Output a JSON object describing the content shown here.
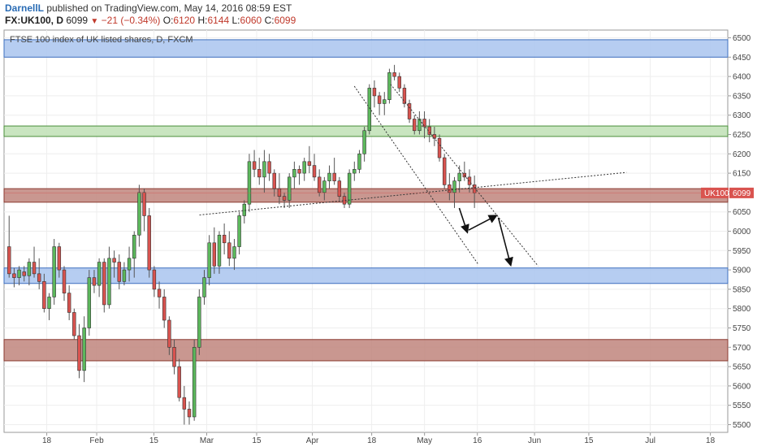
{
  "header": {
    "author": "DarnellL",
    "published": "published on TradingView.com, May 14, 2016 08:59 EST",
    "symbol": "FX:UK100, D",
    "price": "6099",
    "change_arrow": "▼",
    "change": "−21 (−0.34%)",
    "o_label": "O:",
    "o_value": "6120",
    "h_label": "H:",
    "h_value": "6144",
    "l_label": "L:",
    "l_value": "6060",
    "c_label": "C:",
    "c_value": "6099"
  },
  "chart_data": {
    "type": "candlestick",
    "title": "FTSE 100 index of UK listed shares, D, FXCM",
    "ylim": [
      5480,
      6520
    ],
    "y_ticks": [
      5500,
      5550,
      5600,
      5650,
      5700,
      5750,
      5800,
      5850,
      5900,
      5950,
      6000,
      6050,
      6100,
      6150,
      6200,
      6250,
      6300,
      6350,
      6400,
      6450,
      6500
    ],
    "x_ticks": [
      "18",
      "Feb",
      "15",
      "Mar",
      "15",
      "Apr",
      "18",
      "May",
      "16",
      "Jun",
      "15",
      "Jul",
      "18"
    ],
    "symbol_tag": "UK100",
    "last_price": 6099,
    "colors": {
      "up": "#5cb85c",
      "down": "#d9534f",
      "wick": "#555555",
      "blue_zone": "#a9c4ee",
      "green_zone": "#bfe0b5",
      "red_zone": "#c0857c"
    },
    "zones": [
      {
        "kind": "blue",
        "from": 6450,
        "to": 6495
      },
      {
        "kind": "green",
        "from": 6245,
        "to": 6272
      },
      {
        "kind": "red",
        "from": 6075,
        "to": 6110
      },
      {
        "kind": "blue",
        "from": 5865,
        "to": 5905
      },
      {
        "kind": "red",
        "from": 5665,
        "to": 5720
      }
    ],
    "candles": [
      [
        5960,
        6040,
        5880,
        5890
      ],
      [
        5890,
        5905,
        5855,
        5880
      ],
      [
        5880,
        5910,
        5860,
        5900
      ],
      [
        5895,
        5910,
        5870,
        5885
      ],
      [
        5885,
        5930,
        5860,
        5920
      ],
      [
        5920,
        5960,
        5880,
        5890
      ],
      [
        5890,
        5930,
        5850,
        5870
      ],
      [
        5870,
        5890,
        5790,
        5800
      ],
      [
        5800,
        5840,
        5770,
        5830
      ],
      [
        5830,
        5980,
        5810,
        5960
      ],
      [
        5960,
        5970,
        5880,
        5900
      ],
      [
        5900,
        5910,
        5820,
        5840
      ],
      [
        5840,
        5860,
        5770,
        5790
      ],
      [
        5790,
        5800,
        5720,
        5730
      ],
      [
        5730,
        5760,
        5620,
        5640
      ],
      [
        5640,
        5780,
        5610,
        5750
      ],
      [
        5750,
        5900,
        5730,
        5880
      ],
      [
        5880,
        5900,
        5840,
        5860
      ],
      [
        5860,
        5930,
        5830,
        5920
      ],
      [
        5920,
        5930,
        5790,
        5810
      ],
      [
        5810,
        5960,
        5800,
        5930
      ],
      [
        5930,
        5950,
        5880,
        5920
      ],
      [
        5920,
        5940,
        5850,
        5870
      ],
      [
        5870,
        5920,
        5860,
        5900
      ],
      [
        5900,
        5960,
        5870,
        5930
      ],
      [
        5930,
        6000,
        5880,
        5990
      ],
      [
        5990,
        6120,
        5960,
        6100
      ],
      [
        6100,
        6110,
        6000,
        6040
      ],
      [
        6040,
        6060,
        5880,
        5900
      ],
      [
        5900,
        5910,
        5830,
        5850
      ],
      [
        5850,
        5870,
        5800,
        5830
      ],
      [
        5830,
        5850,
        5750,
        5770
      ],
      [
        5770,
        5780,
        5680,
        5700
      ],
      [
        5700,
        5720,
        5630,
        5650
      ],
      [
        5650,
        5670,
        5560,
        5570
      ],
      [
        5570,
        5600,
        5500,
        5540
      ],
      [
        5540,
        5560,
        5500,
        5520
      ],
      [
        5520,
        5720,
        5510,
        5700
      ],
      [
        5700,
        5850,
        5680,
        5830
      ],
      [
        5830,
        5900,
        5810,
        5880
      ],
      [
        5880,
        5990,
        5860,
        5970
      ],
      [
        5970,
        6010,
        5890,
        5910
      ],
      [
        5910,
        6000,
        5890,
        5990
      ],
      [
        5990,
        6020,
        5940,
        5970
      ],
      [
        5970,
        6000,
        5910,
        5930
      ],
      [
        5930,
        5980,
        5900,
        5960
      ],
      [
        5960,
        6050,
        5940,
        6040
      ],
      [
        6040,
        6080,
        6020,
        6070
      ],
      [
        6070,
        6200,
        6050,
        6180
      ],
      [
        6180,
        6210,
        6140,
        6160
      ],
      [
        6160,
        6190,
        6120,
        6140
      ],
      [
        6140,
        6210,
        6100,
        6180
      ],
      [
        6180,
        6200,
        6130,
        6150
      ],
      [
        6150,
        6160,
        6090,
        6110
      ],
      [
        6110,
        6150,
        6070,
        6090
      ],
      [
        6090,
        6100,
        6060,
        6080
      ],
      [
        6080,
        6150,
        6060,
        6140
      ],
      [
        6140,
        6180,
        6110,
        6160
      ],
      [
        6160,
        6170,
        6120,
        6150
      ],
      [
        6150,
        6190,
        6130,
        6180
      ],
      [
        6180,
        6220,
        6150,
        6170
      ],
      [
        6170,
        6200,
        6130,
        6140
      ],
      [
        6140,
        6160,
        6090,
        6100
      ],
      [
        6100,
        6140,
        6080,
        6130
      ],
      [
        6130,
        6170,
        6110,
        6150
      ],
      [
        6150,
        6190,
        6120,
        6130
      ],
      [
        6130,
        6140,
        6080,
        6090
      ],
      [
        6090,
        6100,
        6060,
        6070
      ],
      [
        6070,
        6160,
        6060,
        6150
      ],
      [
        6150,
        6180,
        6130,
        6160
      ],
      [
        6160,
        6210,
        6150,
        6200
      ],
      [
        6200,
        6270,
        6180,
        6260
      ],
      [
        6260,
        6380,
        6250,
        6370
      ],
      [
        6370,
        6390,
        6320,
        6350
      ],
      [
        6350,
        6360,
        6300,
        6330
      ],
      [
        6330,
        6360,
        6300,
        6340
      ],
      [
        6340,
        6420,
        6330,
        6410
      ],
      [
        6410,
        6430,
        6390,
        6400
      ],
      [
        6400,
        6410,
        6360,
        6370
      ],
      [
        6370,
        6380,
        6320,
        6330
      ],
      [
        6330,
        6340,
        6280,
        6290
      ],
      [
        6290,
        6300,
        6250,
        6260
      ],
      [
        6260,
        6310,
        6250,
        6290
      ],
      [
        6290,
        6310,
        6240,
        6270
      ],
      [
        6270,
        6290,
        6230,
        6250
      ],
      [
        6250,
        6270,
        6220,
        6240
      ],
      [
        6240,
        6250,
        6180,
        6190
      ],
      [
        6190,
        6200,
        6110,
        6120
      ],
      [
        6120,
        6150,
        6080,
        6100
      ],
      [
        6100,
        6140,
        6060,
        6130
      ],
      [
        6130,
        6170,
        6100,
        6150
      ],
      [
        6150,
        6180,
        6130,
        6140
      ],
      [
        6140,
        6160,
        6100,
        6120
      ],
      [
        6120,
        6144,
        6060,
        6099
      ]
    ],
    "annotations": [
      {
        "type": "dotted-line",
        "from": [
          0.27,
          6042
        ],
        "to": [
          0.86,
          6152
        ]
      },
      {
        "type": "dotted-line",
        "from": [
          0.484,
          6375
        ],
        "to": [
          0.655,
          5915
        ]
      },
      {
        "type": "dotted-line",
        "from": [
          0.534,
          6380
        ],
        "to": [
          0.738,
          5910
        ]
      },
      {
        "type": "arrow",
        "from": [
          0.629,
          6060
        ],
        "to": [
          0.64,
          5998
        ]
      },
      {
        "type": "arrow",
        "from": [
          0.642,
          6003
        ],
        "to": [
          0.68,
          6040
        ]
      },
      {
        "type": "arrow",
        "from": [
          0.683,
          6035
        ],
        "to": [
          0.7,
          5913
        ]
      }
    ]
  }
}
